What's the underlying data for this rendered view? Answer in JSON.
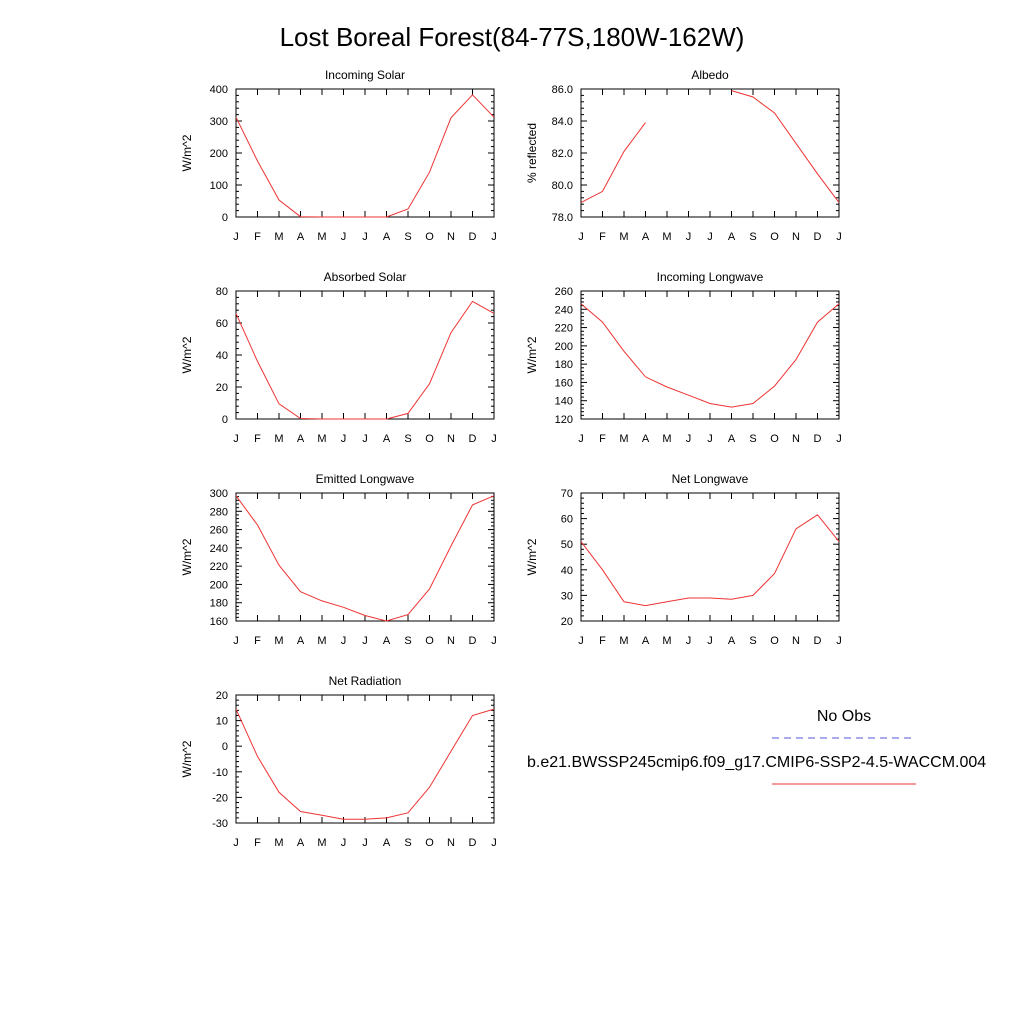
{
  "title": "Lost Boreal Forest(84-77S,180W-162W)",
  "months": [
    "J",
    "F",
    "M",
    "A",
    "M",
    "J",
    "J",
    "A",
    "S",
    "O",
    "N",
    "D",
    "J"
  ],
  "legend": {
    "obs_label": "No Obs",
    "obs_color": "#5555dd",
    "model_label": "b.e21.BWSSP245cmip6.f09_g17.CMIP6-SSP2-4.5-WACCM.004",
    "model_color": "#ee3333"
  },
  "chart_data": [
    {
      "type": "line",
      "title": "Incoming Solar",
      "ylabel": "W/m^2",
      "ylim": [
        0,
        400
      ],
      "yticks": [
        "0",
        "100",
        "200",
        "300",
        "400"
      ],
      "series": [
        {
          "values": [
            312,
            175,
            53,
            1,
            0,
            0,
            0,
            0,
            25,
            140,
            310,
            382,
            312
          ]
        }
      ]
    },
    {
      "type": "line",
      "title": "Albedo",
      "ylabel": "% reflected",
      "ylim": [
        78,
        86
      ],
      "yticks": [
        "78.0",
        "80.0",
        "82.0",
        "84.0",
        "86.0"
      ],
      "series": [
        {
          "values": [
            78.9,
            79.6,
            82.1,
            83.9,
            null,
            null,
            null,
            85.9,
            85.5,
            84.5,
            82.6,
            80.7,
            78.9
          ]
        }
      ]
    },
    {
      "type": "line",
      "title": "Absorbed Solar",
      "ylabel": "W/m^2",
      "ylim": [
        0,
        80
      ],
      "yticks": [
        "0",
        "20",
        "40",
        "60",
        "80"
      ],
      "series": [
        {
          "values": [
            66,
            36,
            9.5,
            0.3,
            0,
            0,
            0,
            0,
            3.5,
            22,
            54,
            73.5,
            66
          ]
        }
      ]
    },
    {
      "type": "line",
      "title": "Incoming Longwave",
      "ylabel": "W/m^2",
      "ylim": [
        120,
        260
      ],
      "yticks": [
        "120",
        "140",
        "160",
        "180",
        "200",
        "220",
        "240",
        "260"
      ],
      "series": [
        {
          "values": [
            246,
            226,
            194,
            166,
            155,
            146,
            137,
            133,
            137,
            156,
            185,
            226,
            246
          ]
        }
      ]
    },
    {
      "type": "line",
      "title": "Emitted Longwave",
      "ylabel": "W/m^2",
      "ylim": [
        160,
        300
      ],
      "yticks": [
        "160",
        "180",
        "200",
        "220",
        "240",
        "260",
        "280",
        "300"
      ],
      "series": [
        {
          "values": [
            297,
            265,
            221,
            192,
            182,
            175,
            166,
            160,
            167,
            195,
            242,
            287,
            297
          ]
        }
      ]
    },
    {
      "type": "line",
      "title": "Net Longwave",
      "ylabel": "W/m^2",
      "ylim": [
        20,
        70
      ],
      "yticks": [
        "20",
        "30",
        "40",
        "50",
        "60",
        "70"
      ],
      "series": [
        {
          "values": [
            51,
            40,
            27.5,
            26,
            27.5,
            29,
            29,
            28.5,
            30,
            38.5,
            56,
            61.5,
            51
          ]
        }
      ]
    },
    {
      "type": "line",
      "title": "Net Radiation",
      "ylabel": "W/m^2",
      "ylim": [
        -30,
        20
      ],
      "yticks": [
        "-30",
        "-20",
        "-10",
        "0",
        "10",
        "20"
      ],
      "series": [
        {
          "values": [
            14.5,
            -4,
            -18,
            -25.5,
            -27,
            -28.5,
            -28.5,
            -28,
            -26,
            -16,
            -2,
            12,
            14.5
          ]
        }
      ]
    }
  ]
}
